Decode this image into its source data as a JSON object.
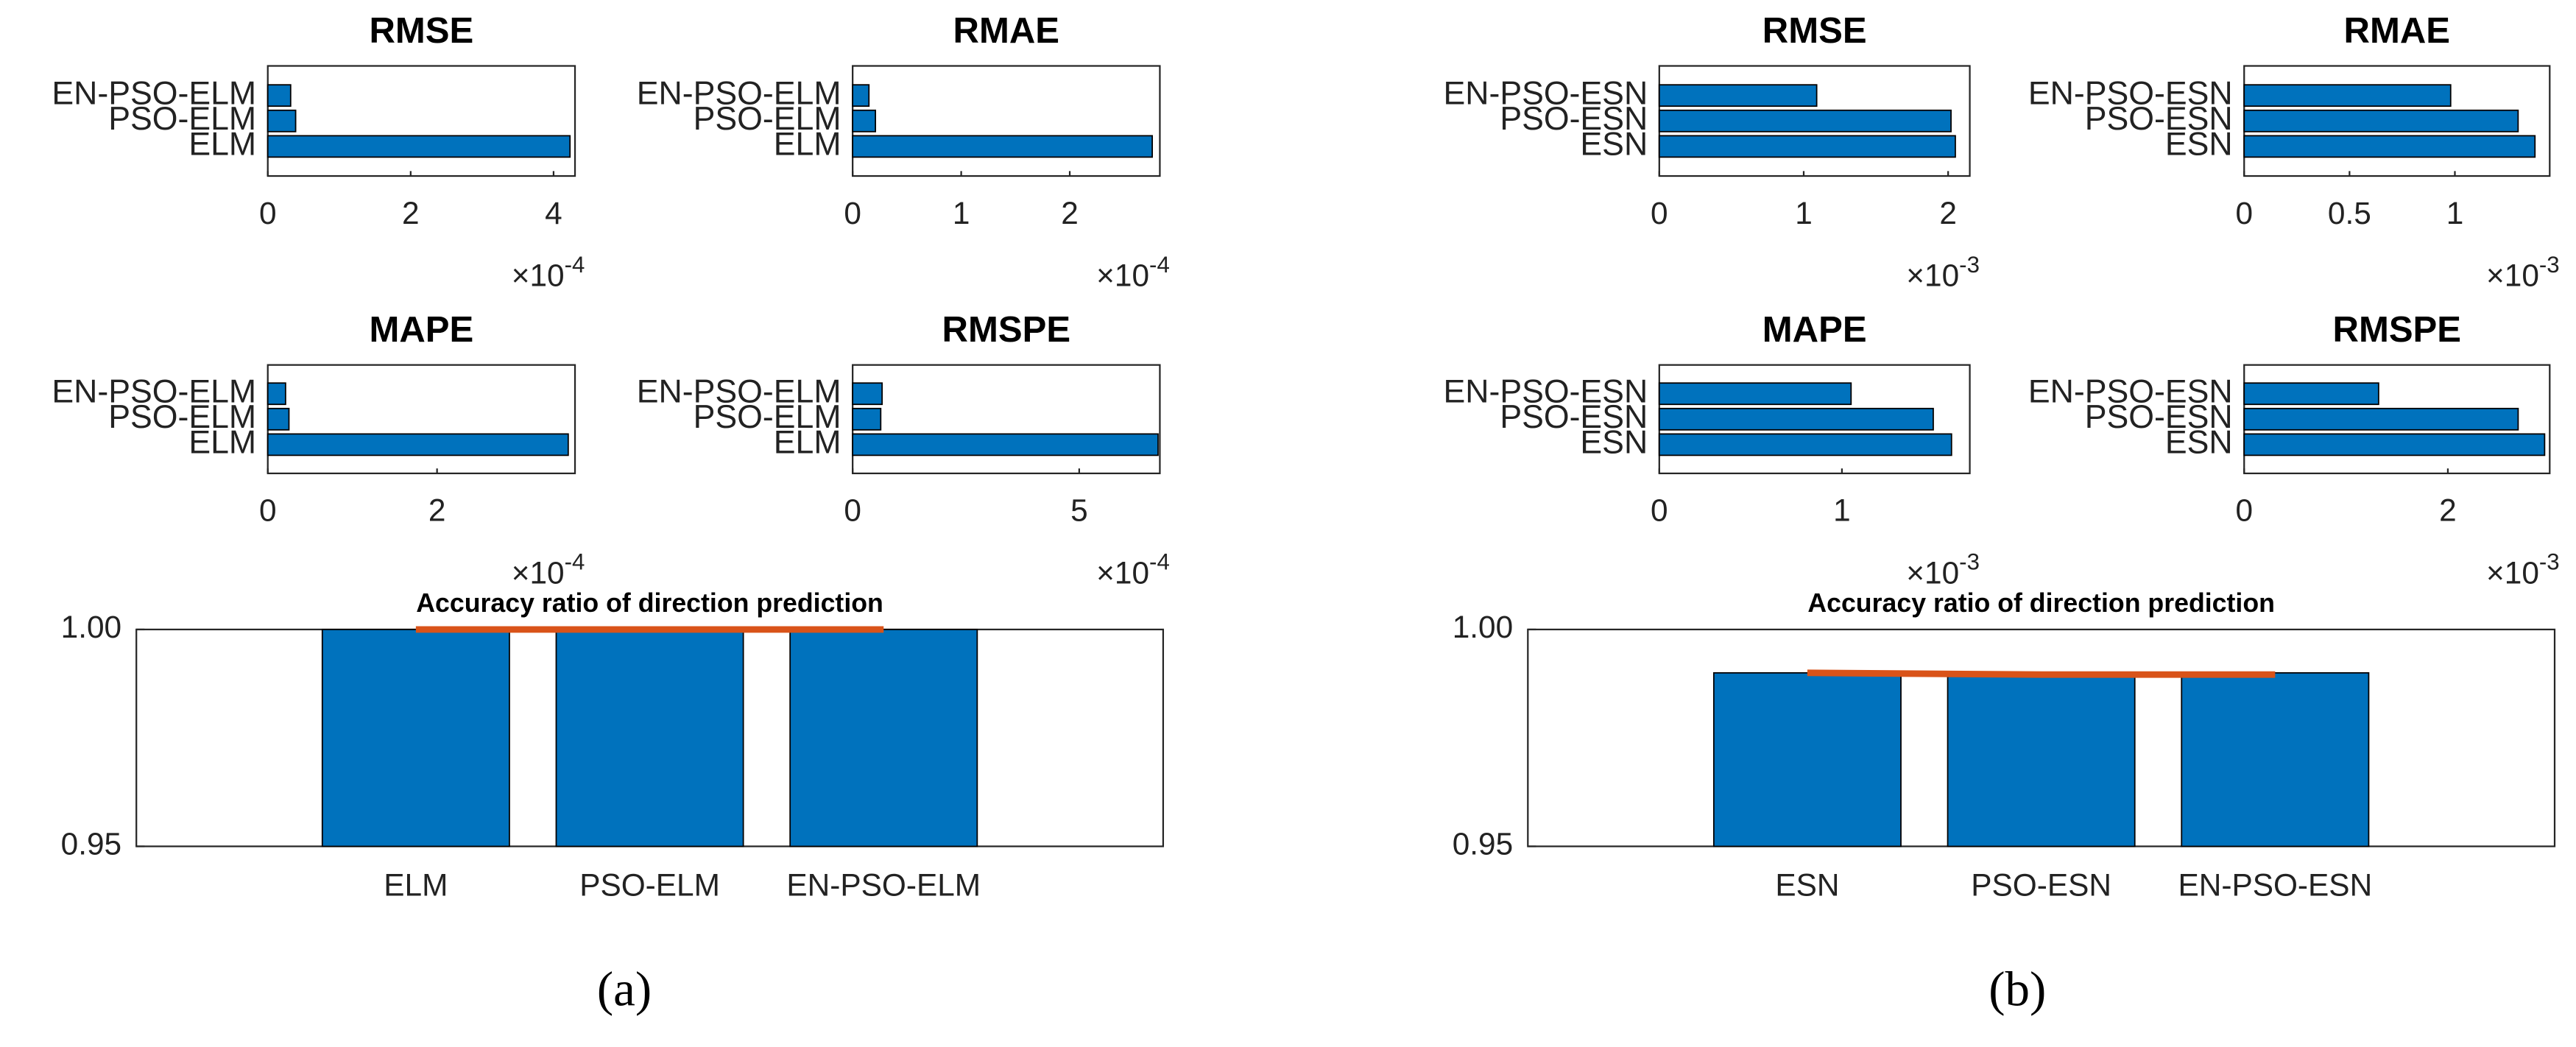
{
  "chart_data": [
    {
      "type": "hbar",
      "title": "RMSE",
      "categories": [
        "EN-PSO-ELM",
        "PSO-ELM",
        "ELM"
      ],
      "values": [
        0.32,
        0.39,
        4.23
      ],
      "color": "#0072bd",
      "xlim": [
        0,
        4.3
      ],
      "xticks": [
        0,
        2,
        4
      ],
      "scale_base": "×10",
      "scale_exponent": "-4"
    },
    {
      "type": "hbar",
      "title": "RMAE",
      "categories": [
        "EN-PSO-ELM",
        "PSO-ELM",
        "ELM"
      ],
      "values": [
        0.15,
        0.21,
        2.76
      ],
      "color": "#0072bd",
      "xlim": [
        0,
        2.83
      ],
      "xticks": [
        0,
        1,
        2
      ],
      "scale_base": "×10",
      "scale_exponent": "-4"
    },
    {
      "type": "hbar",
      "title": "MAPE",
      "categories": [
        "EN-PSO-ELM",
        "PSO-ELM",
        "ELM"
      ],
      "values": [
        0.21,
        0.25,
        3.55
      ],
      "color": "#0072bd",
      "xlim": [
        0,
        3.63
      ],
      "xticks": [
        0,
        2
      ],
      "scale_base": "×10",
      "scale_exponent": "-4"
    },
    {
      "type": "hbar",
      "title": "RMSPE",
      "categories": [
        "EN-PSO-ELM",
        "PSO-ELM",
        "ELM"
      ],
      "values": [
        0.65,
        0.62,
        6.74
      ],
      "color": "#0072bd",
      "xlim": [
        0,
        6.78
      ],
      "xticks": [
        0,
        5
      ],
      "scale_base": "×10",
      "scale_exponent": "-4"
    },
    {
      "type": "bar",
      "title": "Accuracy ratio of direction prediction",
      "categories": [
        "ELM",
        "PSO-ELM",
        "EN-PSO-ELM"
      ],
      "series": [
        {
          "type": "bar",
          "color": "#0072bd",
          "values": [
            1.0,
            1.0,
            1.0
          ]
        },
        {
          "type": "line",
          "color": "#d95319",
          "values": [
            1.0,
            1.0,
            1.0
          ]
        }
      ],
      "ylim": [
        0.95,
        1.0
      ],
      "yticks": [
        0.95,
        {
          "value": 1.0,
          "label": "1.00"
        }
      ]
    },
    {
      "type": "hbar",
      "title": "RMSE",
      "categories": [
        "EN-PSO-ESN",
        "PSO-ESN",
        "ESN"
      ],
      "values": [
        1.09,
        2.02,
        2.05
      ],
      "color": "#0072bd",
      "xlim": [
        0,
        2.15
      ],
      "xticks": [
        0,
        1,
        2
      ],
      "scale_base": "×10",
      "scale_exponent": "-3"
    },
    {
      "type": "hbar",
      "title": "RMAE",
      "categories": [
        "EN-PSO-ESN",
        "PSO-ESN",
        "ESN"
      ],
      "values": [
        0.98,
        1.3,
        1.38
      ],
      "color": "#0072bd",
      "xlim": [
        0,
        1.45
      ],
      "xticks": [
        0,
        0.5,
        1
      ],
      "scale_base": "×10",
      "scale_exponent": "-3"
    },
    {
      "type": "hbar",
      "title": "MAPE",
      "categories": [
        "EN-PSO-ESN",
        "PSO-ESN",
        "ESN"
      ],
      "values": [
        1.05,
        1.5,
        1.6
      ],
      "color": "#0072bd",
      "xlim": [
        0,
        1.7
      ],
      "xticks": [
        0,
        1
      ],
      "scale_base": "×10",
      "scale_exponent": "-3"
    },
    {
      "type": "hbar",
      "title": "RMSPE",
      "categories": [
        "EN-PSO-ESN",
        "PSO-ESN",
        "ESN"
      ],
      "values": [
        1.32,
        2.69,
        2.95
      ],
      "color": "#0072bd",
      "xlim": [
        0,
        3.0
      ],
      "xticks": [
        0,
        2
      ],
      "scale_base": "×10",
      "scale_exponent": "-3"
    },
    {
      "type": "bar",
      "title": "Accuracy ratio of direction prediction",
      "categories": [
        "ESN",
        "PSO-ESN",
        "EN-PSO-ESN"
      ],
      "series": [
        {
          "type": "bar",
          "color": "#0072bd",
          "values": [
            0.99,
            0.99,
            0.99
          ]
        },
        {
          "type": "line",
          "color": "#d95319",
          "values": [
            0.99,
            0.9896,
            0.9896
          ]
        }
      ],
      "ylim": [
        0.95,
        1.0
      ],
      "yticks": [
        0.95,
        {
          "value": 1.0,
          "label": "1.00"
        }
      ]
    }
  ],
  "panels": [
    {
      "label": "(a)"
    },
    {
      "label": "(b)"
    }
  ]
}
